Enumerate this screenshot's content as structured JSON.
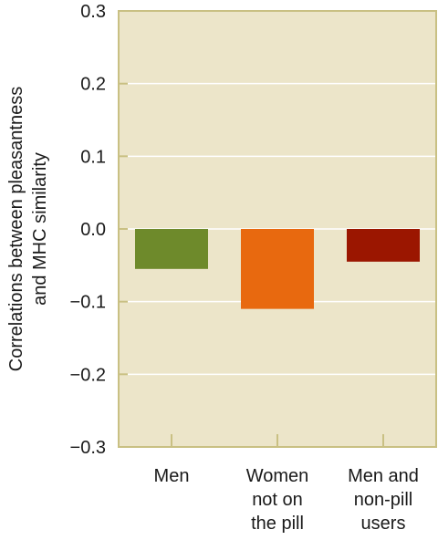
{
  "chart_data": {
    "type": "bar",
    "categories": [
      [
        "Men"
      ],
      [
        "Women",
        "not on",
        "the pill"
      ],
      [
        "Men and",
        "non-pill",
        "users"
      ]
    ],
    "values": [
      -0.055,
      -0.11,
      -0.045
    ],
    "bar_colors": [
      "#6e8a2b",
      "#e8690f",
      "#9b1600"
    ],
    "ylabel": [
      "Correlations between pleasantness",
      "and MHC similarity"
    ],
    "ylim": [
      -0.3,
      0.3
    ],
    "yticks": [
      0.3,
      0.2,
      0.1,
      0.0,
      -0.1,
      -0.2,
      -0.3
    ],
    "ytick_labels": [
      "0.3",
      "0.2",
      "0.1",
      "0.0",
      "−0.1",
      "−0.2",
      "−0.3"
    ],
    "grid": true
  },
  "colors": {
    "plot_background": "#ece5c9",
    "frame": "#c9c083",
    "gridline": "#ffffff"
  }
}
